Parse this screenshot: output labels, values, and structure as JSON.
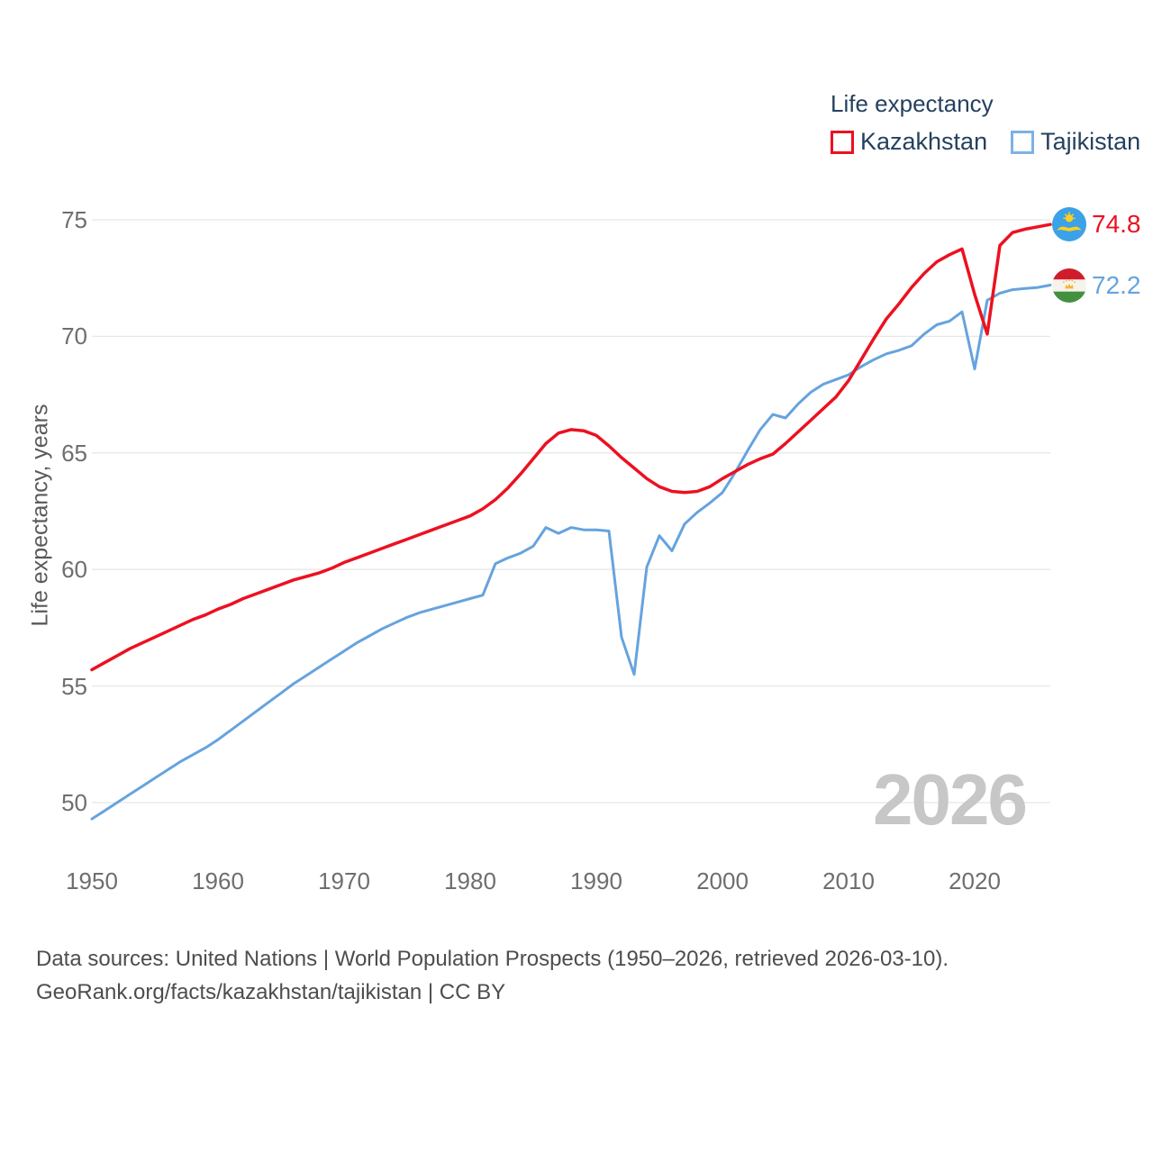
{
  "legend": {
    "title": "Life expectancy",
    "items": [
      {
        "label": "Kazakhstan",
        "color": "#ec1120"
      },
      {
        "label": "Tajikistan",
        "color": "#7eb1e6"
      }
    ]
  },
  "y_axis": {
    "title": "Life expectancy, years",
    "ticks": [
      "75",
      "70",
      "65",
      "60",
      "55",
      "50"
    ]
  },
  "x_axis": {
    "ticks": [
      "1950",
      "1960",
      "1970",
      "1980",
      "1990",
      "2000",
      "2010",
      "2020"
    ]
  },
  "end_labels": [
    {
      "country": "Kazakhstan",
      "value": "74.8",
      "flag": "kazakhstan-flag"
    },
    {
      "country": "Tajikistan",
      "value": "72.2",
      "flag": "tajikistan-flag"
    }
  ],
  "watermark": "2026",
  "footer": {
    "line1": "Data sources: United Nations | World Population Prospects (1950–2026, retrieved 2026-03-10).",
    "line2": "GeoRank.org/facts/kazakhstan/tajikistan | CC BY"
  },
  "chart_data": {
    "type": "line",
    "title": "Life expectancy",
    "ylabel": "Life expectancy, years",
    "x_range": [
      1950,
      2026
    ],
    "x_step": 1,
    "ylim": [
      47.5,
      76.5
    ],
    "yticks": [
      75,
      70,
      65,
      60,
      55,
      50
    ],
    "xticks": [
      1950,
      1960,
      1970,
      1980,
      1990,
      2000,
      2010,
      2020
    ],
    "grid": "horizontal",
    "legend_position": "top-right",
    "series": [
      {
        "name": "Kazakhstan",
        "color": "#ec1120",
        "line_width": 3.5,
        "end_value": 74.8,
        "values": [
          55.7,
          56.0,
          56.3,
          56.6,
          56.85,
          57.1,
          57.35,
          57.6,
          57.85,
          58.05,
          58.3,
          58.5,
          58.75,
          58.95,
          59.15,
          59.35,
          59.55,
          59.7,
          59.85,
          60.05,
          60.3,
          60.5,
          60.7,
          60.9,
          61.1,
          61.3,
          61.5,
          61.7,
          61.9,
          62.1,
          62.3,
          62.6,
          63.0,
          63.5,
          64.1,
          64.75,
          65.4,
          65.85,
          66.0,
          65.95,
          65.75,
          65.3,
          64.8,
          64.35,
          63.9,
          63.55,
          63.35,
          63.3,
          63.35,
          63.55,
          63.9,
          64.2,
          64.5,
          64.75,
          64.95,
          65.4,
          65.9,
          66.4,
          66.9,
          67.4,
          68.1,
          69.0,
          69.9,
          70.75,
          71.4,
          72.1,
          72.7,
          73.2,
          73.5,
          73.75,
          71.8,
          70.1,
          73.9,
          74.45,
          74.6,
          74.7,
          74.8
        ]
      },
      {
        "name": "Tajikistan",
        "color": "#66a3de",
        "line_width": 3,
        "end_value": 72.2,
        "values": [
          49.3,
          49.65,
          50.0,
          50.35,
          50.7,
          51.05,
          51.4,
          51.75,
          52.05,
          52.35,
          52.7,
          53.1,
          53.5,
          53.9,
          54.3,
          54.7,
          55.1,
          55.45,
          55.8,
          56.15,
          56.5,
          56.85,
          57.15,
          57.45,
          57.7,
          57.95,
          58.15,
          58.3,
          58.45,
          58.6,
          58.75,
          58.9,
          60.25,
          60.5,
          60.7,
          61.0,
          61.8,
          61.55,
          61.8,
          61.7,
          61.7,
          61.65,
          57.1,
          55.5,
          60.1,
          61.45,
          60.8,
          61.95,
          62.45,
          62.85,
          63.3,
          64.15,
          65.1,
          66.0,
          66.65,
          66.5,
          67.1,
          67.6,
          67.95,
          68.15,
          68.35,
          68.7,
          69.0,
          69.25,
          69.4,
          69.6,
          70.1,
          70.5,
          70.65,
          71.05,
          68.6,
          71.55,
          71.85,
          72.0,
          72.05,
          72.1,
          72.2
        ]
      }
    ]
  }
}
